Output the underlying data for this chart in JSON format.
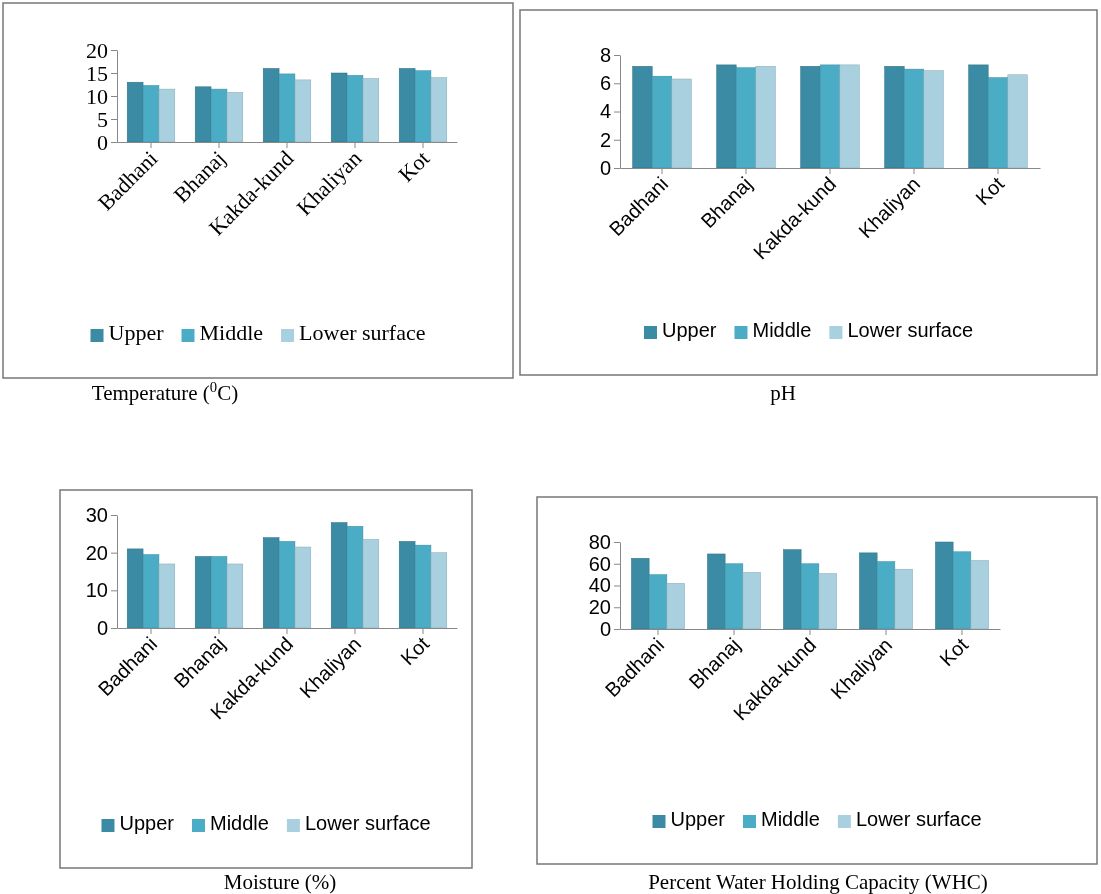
{
  "chart_data": [
    {
      "type": "bar",
      "title": "Temperature ($^{0}$C)",
      "categories": [
        "Badhani",
        "Bhanaj",
        "Kakda-kund",
        "Khaliyan",
        "Kot"
      ],
      "ylim": [
        0,
        20
      ],
      "yticks": [
        0,
        5,
        10,
        15,
        20
      ],
      "legend": "bottom",
      "series": [
        {
          "name": "Upper",
          "color": "#3a8ba3",
          "values": [
            13,
            12,
            16,
            15,
            16
          ]
        },
        {
          "name": "Middle",
          "color": "#4bacc6",
          "values": [
            12.3,
            11.5,
            14.8,
            14.5,
            15.5
          ]
        },
        {
          "name": "Lower surface",
          "color": "#a9d0de",
          "values": [
            11.5,
            10.8,
            13.5,
            13.8,
            14
          ]
        }
      ]
    },
    {
      "type": "bar",
      "title": "pH",
      "categories": [
        "Badhani",
        "Bhanaj",
        "Kakda-kund",
        "Khaliyan",
        "Kot"
      ],
      "ylim": [
        0,
        8
      ],
      "yticks": [
        0,
        2,
        4,
        6,
        8
      ],
      "legend": "bottom",
      "series": [
        {
          "name": "Upper",
          "color": "#3a8ba3",
          "values": [
            7.2,
            7.3,
            7.2,
            7.2,
            7.3
          ]
        },
        {
          "name": "Middle",
          "color": "#4bacc6",
          "values": [
            6.5,
            7.1,
            7.3,
            7.0,
            6.4
          ]
        },
        {
          "name": "Lower surface",
          "color": "#a9d0de",
          "values": [
            6.3,
            7.2,
            7.3,
            6.9,
            6.6
          ]
        }
      ]
    },
    {
      "type": "bar",
      "title": "Moisture (%)",
      "categories": [
        "Badhani",
        "Bhanaj",
        "Kakda-kund",
        "Khaliyan",
        "Kot"
      ],
      "ylim": [
        0,
        30
      ],
      "yticks": [
        0,
        10,
        20,
        30
      ],
      "legend": "bottom",
      "series": [
        {
          "name": "Upper",
          "color": "#3a8ba3",
          "values": [
            21,
            19,
            24,
            28,
            23
          ]
        },
        {
          "name": "Middle",
          "color": "#4bacc6",
          "values": [
            19.5,
            19,
            23,
            27,
            22
          ]
        },
        {
          "name": "Lower surface",
          "color": "#a9d0de",
          "values": [
            17,
            17,
            21.5,
            23.5,
            20
          ]
        }
      ]
    },
    {
      "type": "bar",
      "title": "Percent Water Holding Capacity (WHC)",
      "categories": [
        "Badhani",
        "Bhanaj",
        "Kakda-kund",
        "Khaliyan",
        "Kot"
      ],
      "ylim": [
        0,
        80
      ],
      "yticks": [
        0,
        20,
        40,
        60,
        80
      ],
      "legend": "bottom",
      "series": [
        {
          "name": "Upper",
          "color": "#3a8ba3",
          "values": [
            65,
            69,
            73,
            70,
            80
          ]
        },
        {
          "name": "Middle",
          "color": "#4bacc6",
          "values": [
            50,
            60,
            60,
            62,
            71
          ]
        },
        {
          "name": "Lower surface",
          "color": "#a9d0de",
          "values": [
            42,
            52,
            51,
            55,
            63
          ]
        }
      ]
    }
  ]
}
